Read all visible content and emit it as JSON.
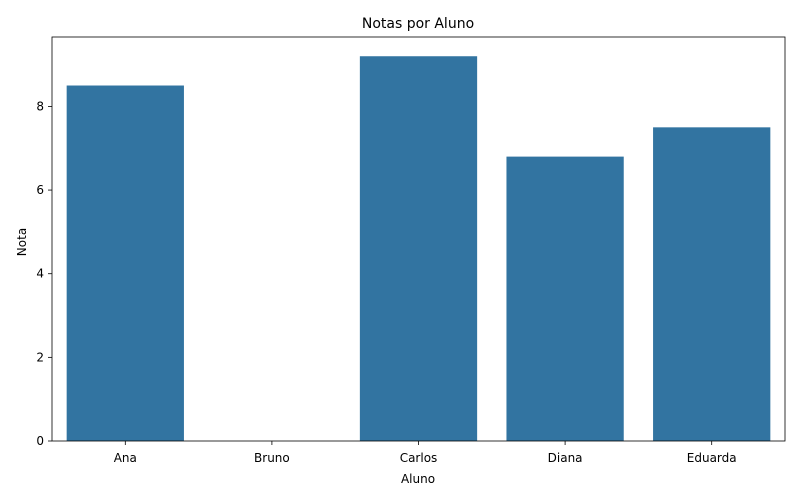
{
  "chart_data": {
    "type": "bar",
    "title": "Notas por Aluno",
    "xlabel": "Aluno",
    "ylabel": "Nota",
    "categories": [
      "Ana",
      "Bruno",
      "Carlos",
      "Diana",
      "Eduarda"
    ],
    "values": [
      8.5,
      0,
      9.2,
      6.8,
      7.5
    ],
    "ylim": [
      0,
      9.66
    ],
    "yticks": [
      "0",
      "2",
      "4",
      "6",
      "8"
    ],
    "grid": false,
    "bar_color": "#3274a1"
  }
}
